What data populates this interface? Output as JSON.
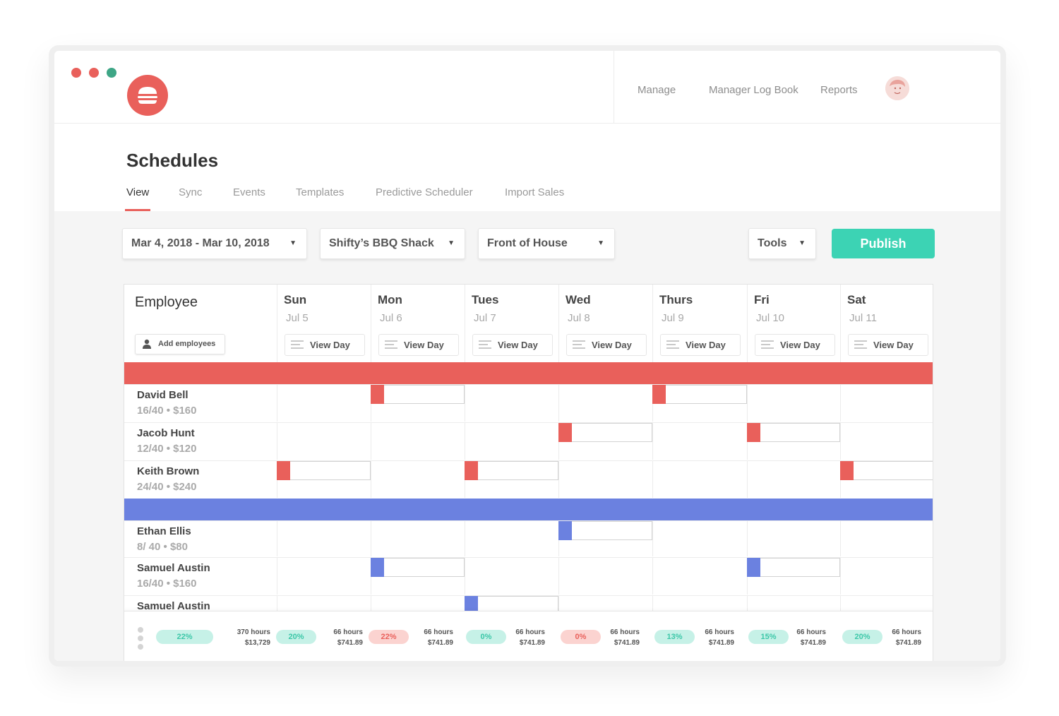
{
  "window_controls": [
    "close",
    "minimize",
    "maximize"
  ],
  "logo": {
    "icon": "burger-logo-icon",
    "color": "#e9605b"
  },
  "top_nav": [
    {
      "label": "Manage"
    },
    {
      "label": "Manager Log Book"
    },
    {
      "label": "Reports"
    }
  ],
  "page": {
    "title": "Schedules",
    "tabs": [
      {
        "label": "View",
        "active": true
      },
      {
        "label": "Sync"
      },
      {
        "label": "Events"
      },
      {
        "label": "Templates"
      },
      {
        "label": "Predictive Scheduler"
      },
      {
        "label": "Import Sales"
      }
    ]
  },
  "toolbar": {
    "date_range": "Mar 4, 2018 - Mar 10, 2018",
    "location": "Shifty’s BBQ Shack",
    "department": "Front of House",
    "tools": "Tools",
    "publish": "Publish"
  },
  "table": {
    "employee_header": "Employee",
    "add_employees": "Add employees",
    "view_day_label": "View Day",
    "days": [
      {
        "name": "Sun",
        "date": "Jul 5"
      },
      {
        "name": "Mon",
        "date": "Jul 6"
      },
      {
        "name": "Tues",
        "date": "Jul 7"
      },
      {
        "name": "Wed",
        "date": "Jul 8"
      },
      {
        "name": "Thurs",
        "date": "Jul 9"
      },
      {
        "name": "Fri",
        "date": "Jul 10"
      },
      {
        "name": "Sat",
        "date": "Jul 11"
      }
    ],
    "groups": [
      {
        "color": "#e9605b",
        "employees": [
          {
            "name": "David Bell",
            "summary": "16/40 • $160",
            "shift_days": [
              1,
              4
            ]
          },
          {
            "name": "Jacob Hunt",
            "summary": "12/40 • $120",
            "shift_days": [
              3,
              5
            ]
          },
          {
            "name": "Keith Brown",
            "summary": "24/40 • $240",
            "shift_days": [
              0,
              2,
              6
            ]
          }
        ]
      },
      {
        "color": "#6b81e0",
        "employees": [
          {
            "name": "Ethan Ellis",
            "summary": "8/ 40 • $80",
            "shift_days": [
              3
            ]
          },
          {
            "name": "Samuel Austin",
            "summary": "16/40 • $160",
            "shift_days": [
              1,
              5
            ]
          },
          {
            "name": "Samuel Austin",
            "summary": "",
            "shift_days": [
              2
            ]
          }
        ]
      }
    ]
  },
  "footer": {
    "total": {
      "percent": "22%",
      "status": "teal",
      "hours": "370 hours",
      "cost": "$13,729"
    },
    "days": [
      {
        "percent": "20%",
        "status": "teal",
        "hours": "66 hours",
        "cost": "$741.89"
      },
      {
        "percent": "22%",
        "status": "red",
        "hours": "66 hours",
        "cost": "$741.89"
      },
      {
        "percent": "0%",
        "status": "teal",
        "hours": "66 hours",
        "cost": "$741.89"
      },
      {
        "percent": "0%",
        "status": "red",
        "hours": "66 hours",
        "cost": "$741.89"
      },
      {
        "percent": "13%",
        "status": "teal",
        "hours": "66 hours",
        "cost": "$741.89"
      },
      {
        "percent": "15%",
        "status": "teal",
        "hours": "66 hours",
        "cost": "$741.89"
      },
      {
        "percent": "20%",
        "status": "teal",
        "hours": "66 hours",
        "cost": "$741.89"
      }
    ]
  }
}
